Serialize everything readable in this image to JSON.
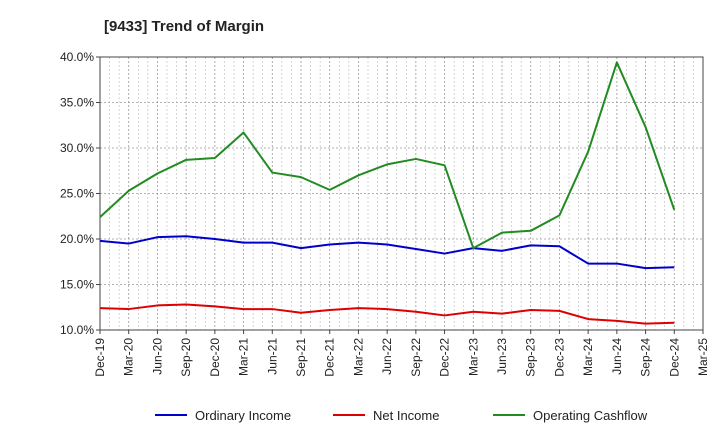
{
  "chart_data": {
    "type": "line",
    "title": "[9433]  Trend of Margin",
    "xlabel": "",
    "ylabel": "",
    "x": [
      "Dec-19",
      "Mar-20",
      "Jun-20",
      "Sep-20",
      "Dec-20",
      "Mar-21",
      "Jun-21",
      "Sep-21",
      "Dec-21",
      "Mar-22",
      "Jun-22",
      "Sep-22",
      "Dec-22",
      "Mar-23",
      "Jun-23",
      "Sep-23",
      "Dec-23",
      "Mar-24",
      "Jun-24",
      "Sep-24",
      "Dec-24",
      "Mar-25"
    ],
    "ylim": [
      10,
      40
    ],
    "yticks": [
      "10.0%",
      "15.0%",
      "20.0%",
      "25.0%",
      "30.0%",
      "35.0%",
      "40.0%"
    ],
    "grid": true,
    "legend_position": "bottom",
    "series": [
      {
        "name": "Ordinary Income",
        "color": "#0000cc",
        "values": [
          19.8,
          19.5,
          20.2,
          20.3,
          20.0,
          19.6,
          19.6,
          19.0,
          19.4,
          19.6,
          19.4,
          18.9,
          18.4,
          19.0,
          18.7,
          19.3,
          19.2,
          17.3,
          17.3,
          16.8,
          16.9,
          null
        ]
      },
      {
        "name": "Net Income",
        "color": "#dd0000",
        "values": [
          12.4,
          12.3,
          12.7,
          12.8,
          12.6,
          12.3,
          12.3,
          11.9,
          12.2,
          12.4,
          12.3,
          12.0,
          11.6,
          12.0,
          11.8,
          12.2,
          12.1,
          11.2,
          11.0,
          10.7,
          10.8,
          null
        ]
      },
      {
        "name": "Operating Cashflow",
        "color": "#228b22",
        "values": [
          22.4,
          25.3,
          27.2,
          28.7,
          28.9,
          31.7,
          27.3,
          26.8,
          25.4,
          27.0,
          28.2,
          28.8,
          28.1,
          19.0,
          20.7,
          20.9,
          22.6,
          29.6,
          39.4,
          32.3,
          23.2,
          null
        ]
      }
    ]
  }
}
